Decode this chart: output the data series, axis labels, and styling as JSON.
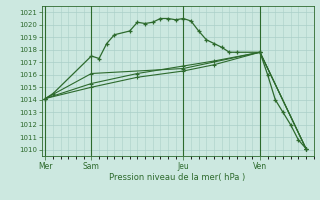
{
  "title": "Pression niveau de la mer( hPa )",
  "bg_color": "#cce8e0",
  "grid_color": "#aacfc8",
  "line_color": "#2d6a2d",
  "ylim": [
    1009.5,
    1021.5
  ],
  "yticks": [
    1010,
    1011,
    1012,
    1013,
    1014,
    1015,
    1016,
    1017,
    1018,
    1019,
    1020,
    1021
  ],
  "day_labels": [
    "Mer",
    "Sam",
    "Jeu",
    "Ven"
  ],
  "day_positions": [
    0,
    6,
    18,
    28
  ],
  "xlim": [
    -0.5,
    35
  ],
  "series1_x": [
    0,
    1,
    6,
    7,
    8,
    9,
    11,
    12,
    13,
    14,
    15,
    16,
    17,
    18,
    19,
    20,
    21,
    22,
    23,
    24,
    25,
    28,
    29,
    30,
    31,
    32,
    33,
    34
  ],
  "series1_y": [
    1014.1,
    1014.5,
    1017.5,
    1017.3,
    1018.5,
    1019.2,
    1019.5,
    1020.2,
    1020.1,
    1020.2,
    1020.5,
    1020.5,
    1020.4,
    1020.5,
    1020.3,
    1019.5,
    1018.8,
    1018.5,
    1018.2,
    1017.8,
    1017.8,
    1017.8,
    1016.0,
    1014.0,
    1013.0,
    1012.0,
    1010.8,
    1010.1
  ],
  "series2_x": [
    0,
    6,
    18,
    28,
    34
  ],
  "series2_y": [
    1014.1,
    1016.1,
    1016.5,
    1017.8,
    1010.1
  ],
  "series3_x": [
    0,
    6,
    12,
    18,
    22,
    28,
    34
  ],
  "series3_y": [
    1014.1,
    1015.0,
    1015.8,
    1016.3,
    1016.8,
    1017.8,
    1010.1
  ],
  "series4_x": [
    0,
    6,
    12,
    18,
    22,
    28,
    34
  ],
  "series4_y": [
    1014.1,
    1015.3,
    1016.1,
    1016.7,
    1017.1,
    1017.8,
    1010.1
  ]
}
